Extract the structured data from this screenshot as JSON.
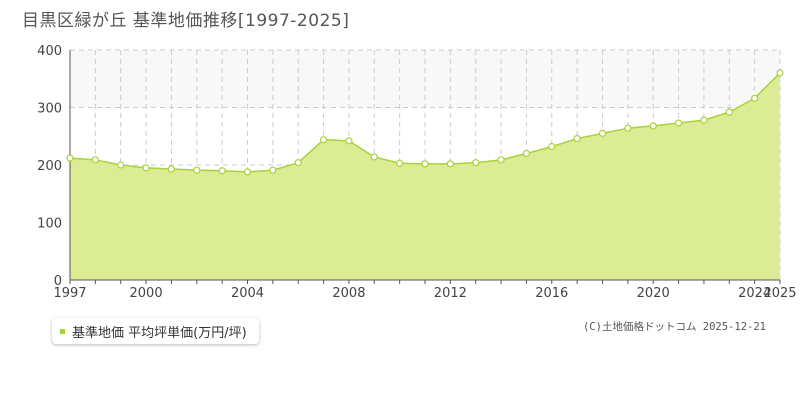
{
  "title": "目黒区緑が丘 基準地価推移[1997-2025]",
  "legend": {
    "label": "基準地価 平均坪単価(万円/坪)"
  },
  "copyright": "(C)土地価格ドットコム 2025-12-21",
  "colors": {
    "fill": "#dcec94",
    "line": "#a8d23a",
    "upper_band": "#f8f8f8",
    "grid": "#cccccc",
    "axis": "#555555"
  },
  "chart_data": {
    "type": "area",
    "x": [
      1997,
      1998,
      1999,
      2000,
      2001,
      2002,
      2003,
      2004,
      2005,
      2006,
      2007,
      2008,
      2009,
      2010,
      2011,
      2012,
      2013,
      2014,
      2015,
      2016,
      2017,
      2018,
      2019,
      2020,
      2021,
      2022,
      2023,
      2024,
      2025
    ],
    "series": [
      {
        "values": [
          212,
          209,
          200,
          195,
          193,
          191,
          190,
          188,
          191,
          204,
          244,
          242,
          214,
          203,
          202,
          202,
          204,
          209,
          220,
          232,
          246,
          255,
          264,
          268,
          273,
          278,
          292,
          316,
          360
        ]
      }
    ],
    "ylim": [
      0,
      400
    ],
    "yticks": [
      0,
      100,
      200,
      300,
      400
    ],
    "xticks": [
      1997,
      2000,
      2004,
      2008,
      2012,
      2016,
      2020,
      2024,
      2025
    ],
    "grid": true,
    "legend_position": "bottom-left"
  }
}
